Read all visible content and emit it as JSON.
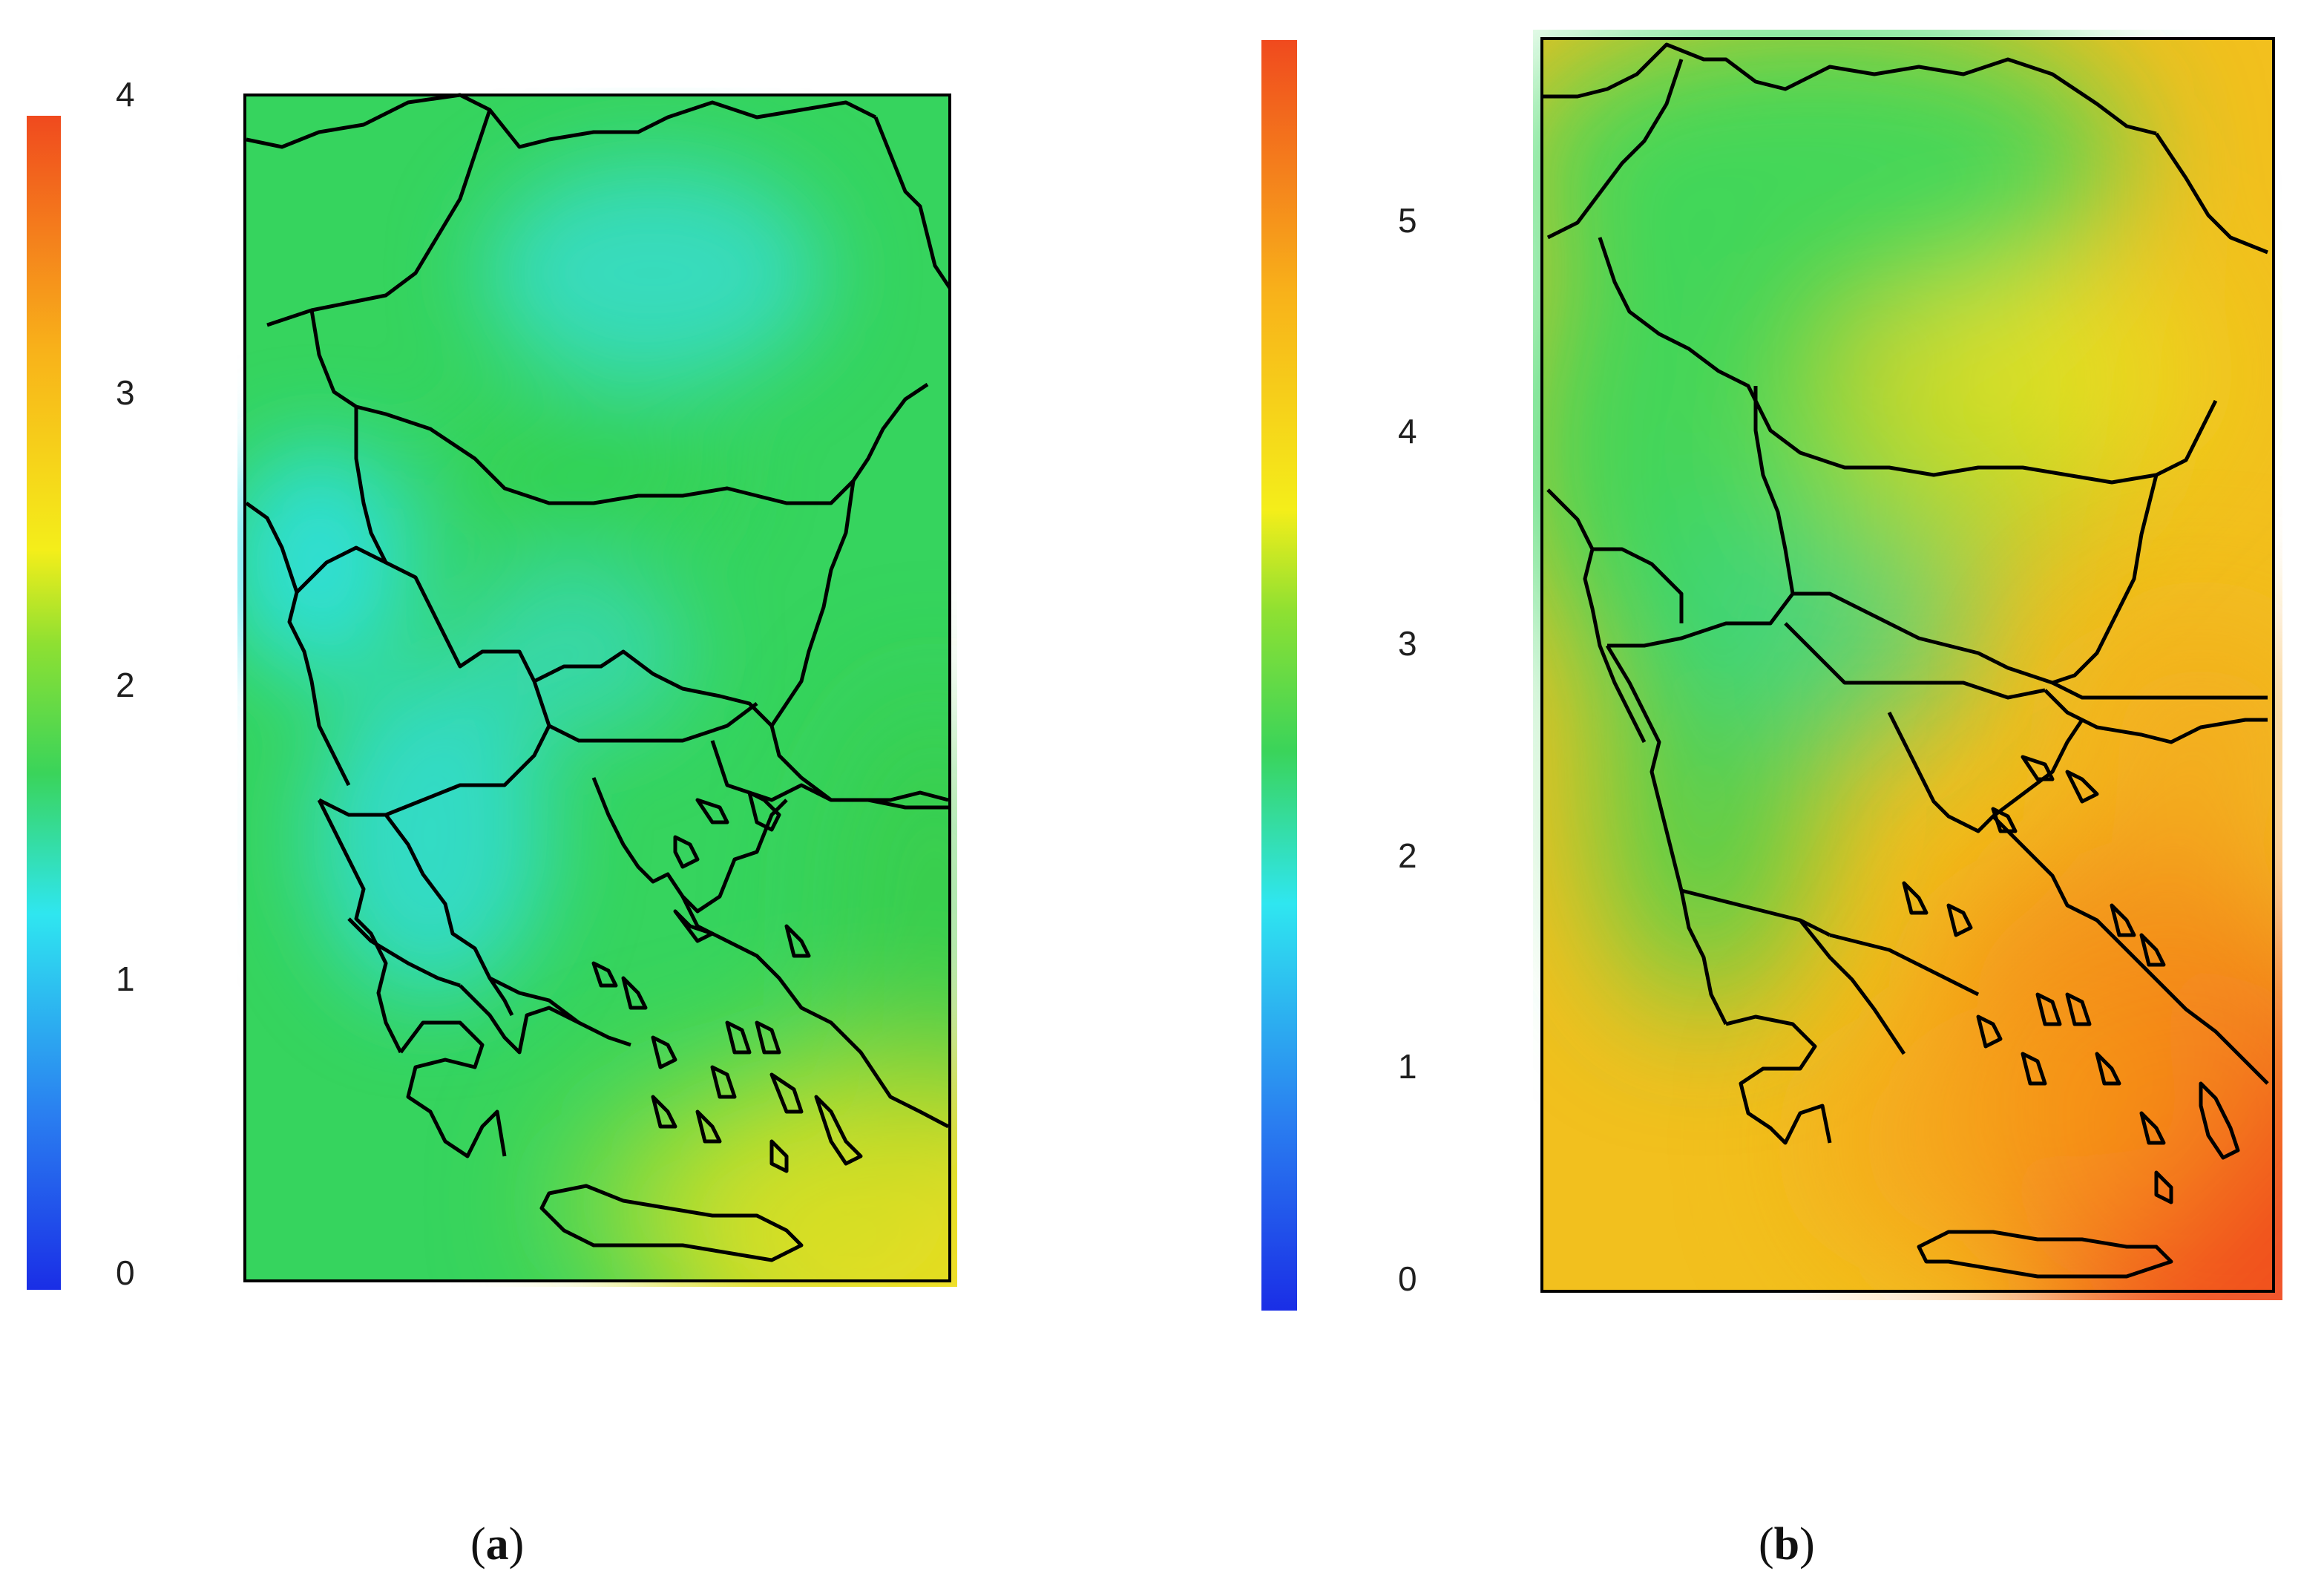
{
  "panels": [
    {
      "caption_letter": "a",
      "colorbar": {
        "ticks": [
          "0",
          "1",
          "2",
          "3",
          "4"
        ],
        "min": 0,
        "max": 4
      },
      "field": {
        "background": "#33d65c",
        "hot_corner": "#e8d020",
        "cool_zone": "#36d6c8"
      }
    },
    {
      "caption_letter": "b",
      "colorbar": {
        "ticks": [
          "0",
          "1",
          "2",
          "3",
          "4",
          "5"
        ],
        "min": 0,
        "max": 6
      },
      "field": {
        "background": "#f2c21c",
        "hot_corner": "#f04a1e",
        "cool_zone": "#3ad45c"
      }
    }
  ],
  "colormap": [
    "#1a2ee6",
    "#2a7ff0",
    "#2fe6f0",
    "#3ad45a",
    "#8ee032",
    "#f4ee1a",
    "#f8b21a",
    "#f04a1e"
  ]
}
